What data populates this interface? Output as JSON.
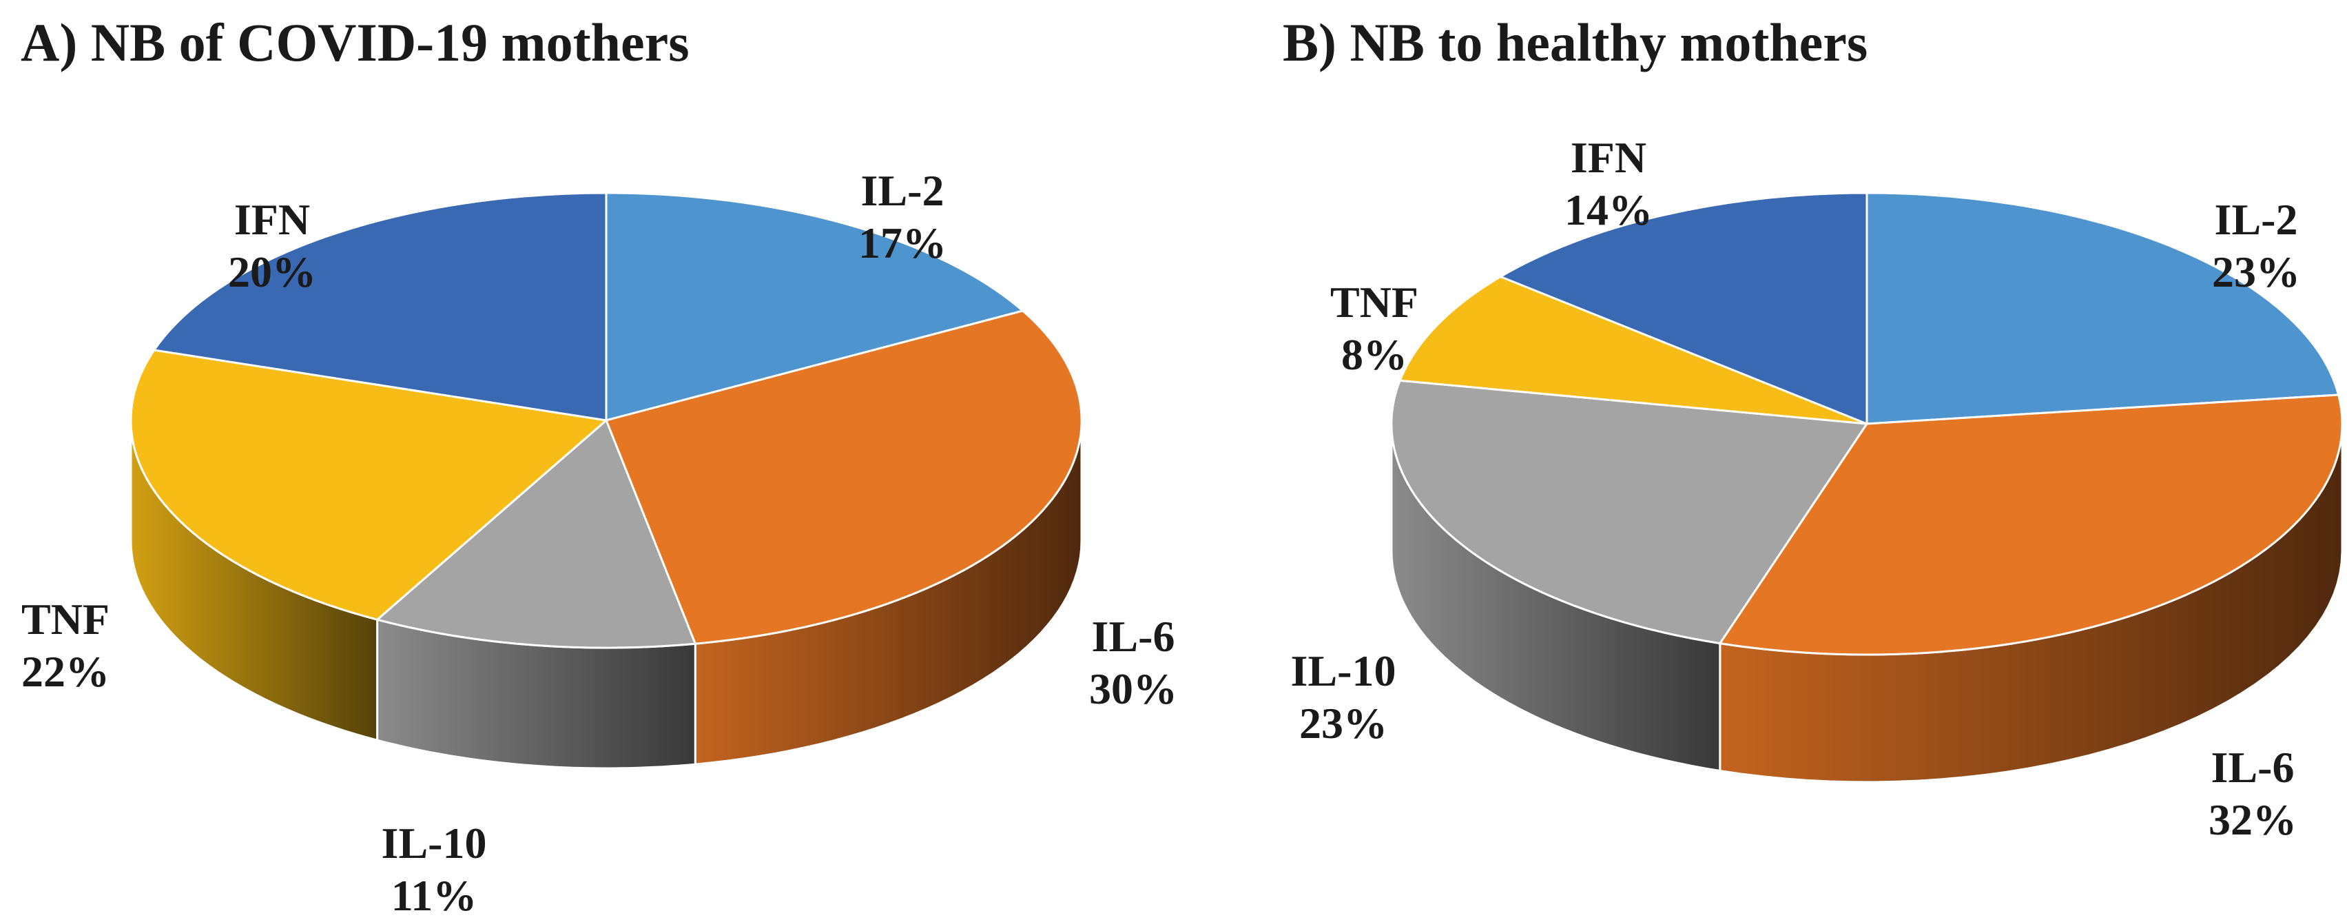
{
  "chart_data": [
    {
      "type": "pie",
      "title": "A) NB of COVID-19 mothers",
      "slices": [
        {
          "label": "IL-2",
          "value": 17,
          "pct_text": "17%",
          "color": "#4E95D0"
        },
        {
          "label": "IL-6",
          "value": 30,
          "pct_text": "30%",
          "color": "#E57624"
        },
        {
          "label": "IL-10",
          "value": 11,
          "pct_text": "11%",
          "color": "#A4A4A4"
        },
        {
          "label": "TNF",
          "value": 22,
          "pct_text": "22%",
          "color": "#F7BC16"
        },
        {
          "label": "IFN",
          "value": 20,
          "pct_text": "20%",
          "color": "#3A69B4"
        }
      ]
    },
    {
      "type": "pie",
      "title": "B) NB to healthy mothers",
      "slices": [
        {
          "label": "IL-2",
          "value": 23,
          "pct_text": "23%",
          "color": "#4E95D0"
        },
        {
          "label": "IL-6",
          "value": 32,
          "pct_text": "32%",
          "color": "#E57624"
        },
        {
          "label": "IL-10",
          "value": 23,
          "pct_text": "23%",
          "color": "#A4A4A4"
        },
        {
          "label": "TNF",
          "value": 8,
          "pct_text": "8%",
          "color": "#F7BC16"
        },
        {
          "label": "IFN",
          "value": 14,
          "pct_text": "14%",
          "color": "#3A69B4"
        }
      ]
    }
  ]
}
